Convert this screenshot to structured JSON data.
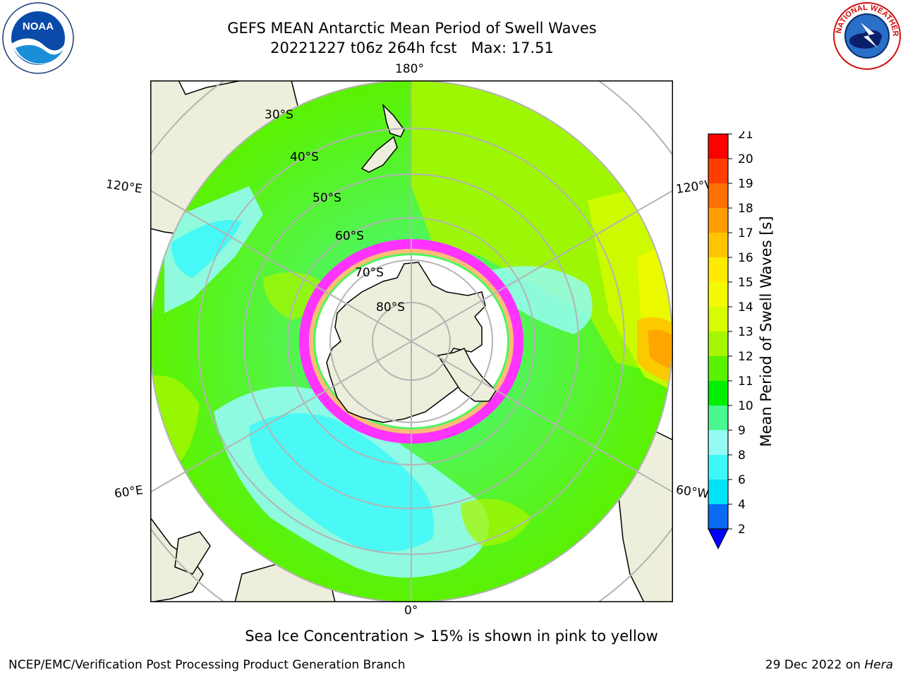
{
  "header": {
    "title_line1": "GEFS MEAN Antarctic Mean Period of Swell Waves",
    "title_line2": "20221227 t06z 264h fcst   Max: 17.51"
  },
  "logos": {
    "left": {
      "name": "NOAA",
      "text": "NOAA",
      "ring_text": "NATIONAL OCEANIC AND ATMOSPHERIC ADMINISTRATION · U.S. DEPARTMENT OF COMMERCE"
    },
    "right": {
      "name": "National Weather Service",
      "ring_text": "NATIONAL WEATHER SERVICE"
    }
  },
  "map": {
    "projection": "south-polar-stereographic",
    "longitude_labels": {
      "top": "180°",
      "bottom": "0°",
      "upper_left": "120°E",
      "upper_right": "120°W",
      "lower_left": "60°E",
      "lower_right": "60°W"
    },
    "latitude_labels": [
      "30°S",
      "40°S",
      "50°S",
      "60°S",
      "70°S",
      "80°S"
    ]
  },
  "colorbar": {
    "label": "Mean Period of Swell Waves [s]",
    "ticks": [
      "2",
      "4",
      "6",
      "8",
      "9",
      "10",
      "11",
      "12",
      "13",
      "14",
      "15",
      "16",
      "17",
      "18",
      "19",
      "20",
      "21"
    ],
    "colors": [
      "#0a6bf2",
      "#00e2f8",
      "#3ef8f8",
      "#96fbf5",
      "#49f890",
      "#00ee00",
      "#5bf200",
      "#a5f600",
      "#d8fc00",
      "#f4fa00",
      "#ffeb00",
      "#ffc400",
      "#ff9d00",
      "#ff7000",
      "#ff3d00",
      "#ff0000"
    ],
    "under_color": "#0000ff"
  },
  "colors": {
    "land": "#eeeedc",
    "ice_pink": "#ff33ff",
    "ice_orange": "#ffbb77",
    "grid": "#b4b4b4"
  },
  "footer": {
    "caption": "Sea Ice Concentration > 15% is shown in pink to yellow",
    "left": "NCEP/EMC/Verification Post Processing Product Generation Branch",
    "right_date": "29 Dec 2022 on ",
    "right_host": "Hera"
  }
}
